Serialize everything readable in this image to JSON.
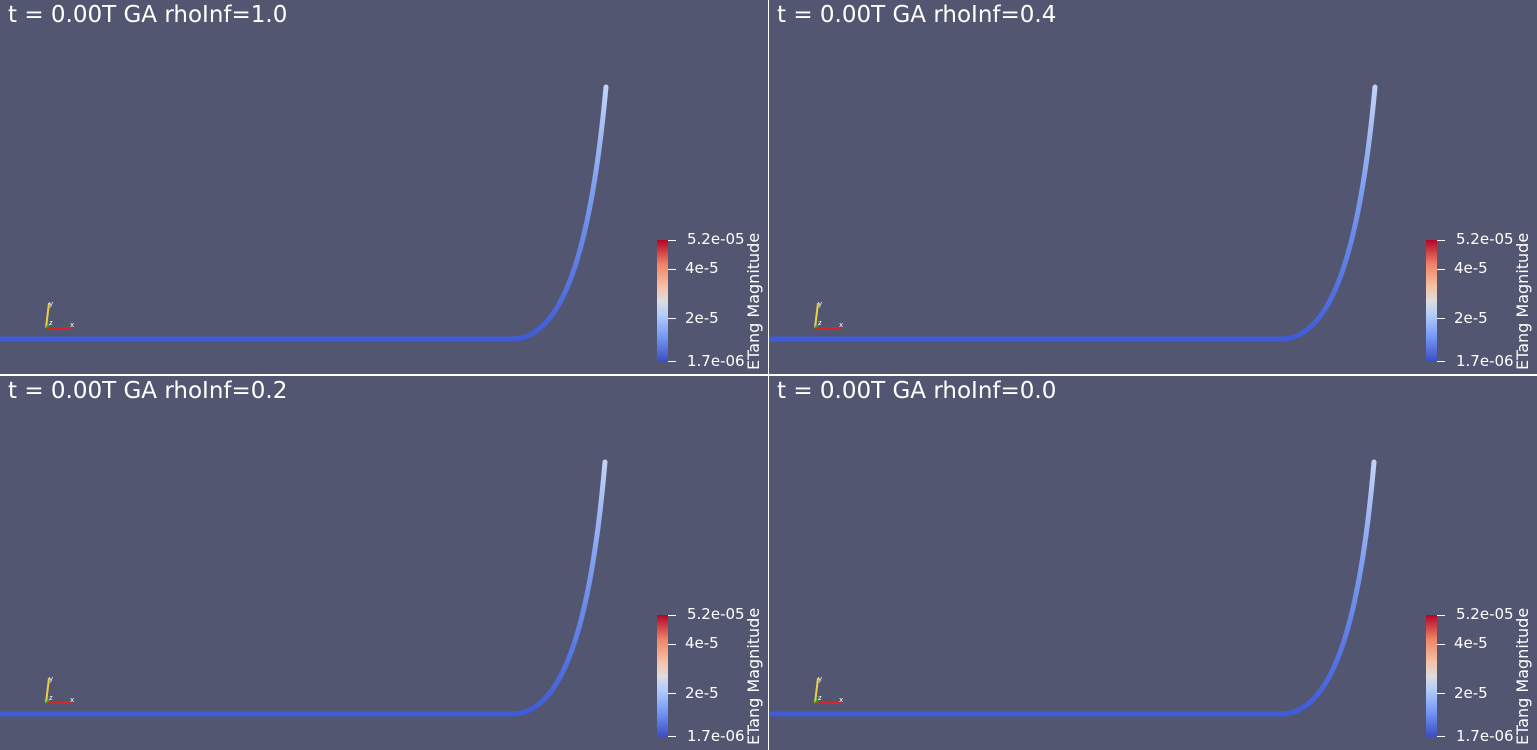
{
  "views": [
    {
      "title": "t = 0.00T GA rhoInf=1.0"
    },
    {
      "title": "t = 0.00T GA rhoInf=0.4"
    },
    {
      "title": "t = 0.00T GA rhoInf=0.2"
    },
    {
      "title": "t = 0.00T GA rhoInf=0.0"
    }
  ],
  "color_legend": {
    "title": "ETang Magnitude",
    "max_label": "5.2e-05",
    "tick_1_label": "4e-5",
    "tick_2_label": "2e-5",
    "min_label": "1.7e-06",
    "colormap": [
      "#3b4cc0",
      "#dddddd",
      "#b40426"
    ]
  },
  "axes_triad": {
    "x_label": "x",
    "y_label": "y",
    "z_label": "z"
  },
  "colors": {
    "background": "#525670",
    "separator": "#ffffff",
    "curve_low": "#3f5bd8",
    "curve_high": "#b8ccf7"
  }
}
